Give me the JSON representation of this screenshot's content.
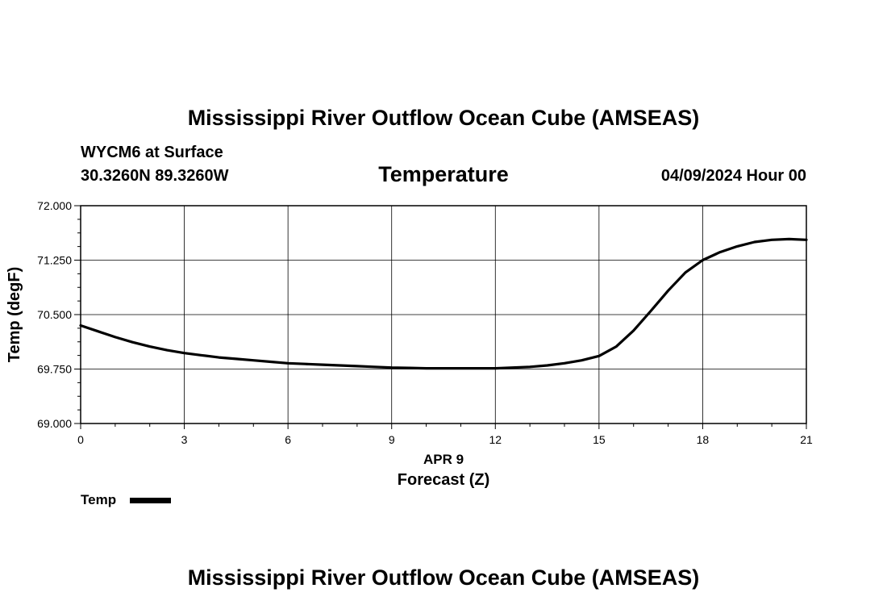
{
  "header": {
    "title": "Mississippi River Outflow Ocean Cube (AMSEAS)",
    "station": "WYCM6 at Surface",
    "coords": "30.3260N  89.3260W",
    "variable": "Temperature",
    "datetime": "04/09/2024 Hour 00"
  },
  "footer": {
    "title": "Mississippi River Outflow Ocean Cube (AMSEAS)"
  },
  "chart_data": {
    "type": "line",
    "title": "Temperature",
    "xlabel": "Forecast (Z)",
    "date_label": "APR 9",
    "ylabel": "Temp (degF)",
    "xlim": [
      0,
      21
    ],
    "ylim": [
      69.0,
      72.0
    ],
    "x_ticks": [
      0,
      3,
      6,
      9,
      12,
      15,
      18,
      21
    ],
    "x_tick_labels": [
      "0",
      "3",
      "6",
      "9",
      "12",
      "15",
      "18",
      "21"
    ],
    "y_ticks": [
      69.0,
      69.75,
      70.5,
      71.25,
      72.0
    ],
    "y_tick_labels": [
      "69.000",
      "69.750",
      "70.500",
      "71.250",
      "72.000"
    ],
    "grid": true,
    "legend": {
      "placement": "bottom-left",
      "entries": [
        "Temp"
      ]
    },
    "series": [
      {
        "name": "Temp",
        "color": "#000000",
        "x": [
          0,
          0.5,
          1,
          1.5,
          2,
          2.5,
          3,
          3.5,
          4,
          4.5,
          5,
          5.5,
          6,
          6.5,
          7,
          7.5,
          8,
          8.5,
          9,
          9.5,
          10,
          10.5,
          11,
          11.5,
          12,
          12.5,
          13,
          13.5,
          14,
          14.5,
          15,
          15.5,
          16,
          16.5,
          17,
          17.5,
          18,
          18.5,
          19,
          19.5,
          20,
          20.5,
          21
        ],
        "values": [
          70.35,
          70.27,
          70.19,
          70.12,
          70.06,
          70.01,
          69.97,
          69.94,
          69.91,
          69.89,
          69.87,
          69.85,
          69.83,
          69.82,
          69.81,
          69.8,
          69.79,
          69.78,
          69.77,
          69.765,
          69.76,
          69.76,
          69.76,
          69.76,
          69.76,
          69.77,
          69.78,
          69.8,
          69.83,
          69.87,
          69.93,
          70.06,
          70.28,
          70.55,
          70.83,
          71.08,
          71.25,
          71.36,
          71.44,
          71.5,
          71.53,
          71.54,
          71.53
        ]
      }
    ]
  }
}
